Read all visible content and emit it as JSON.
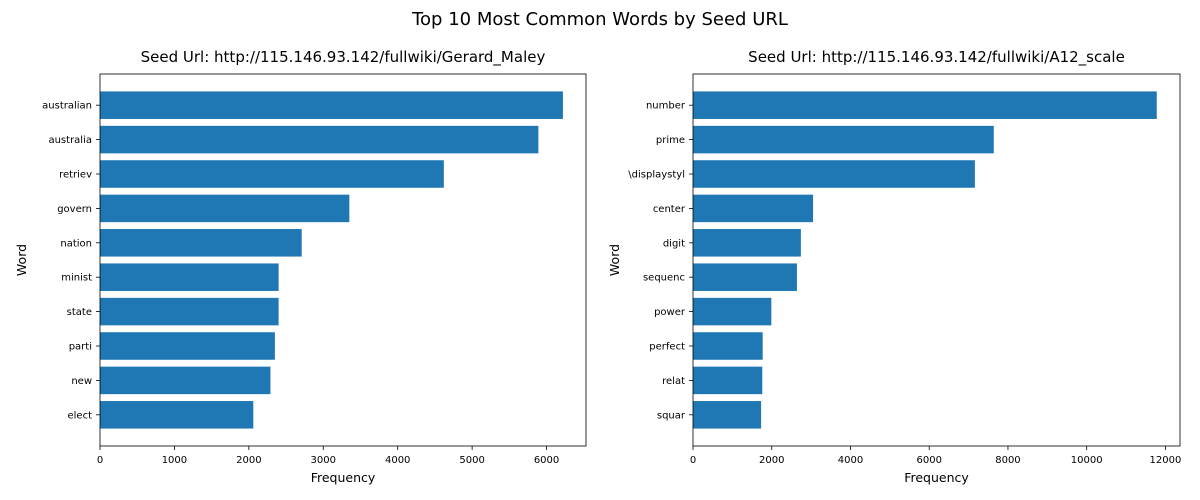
{
  "figure": {
    "suptitle": "Top 10 Most Common Words by Seed URL"
  },
  "chart_data": [
    {
      "type": "bar",
      "orientation": "horizontal",
      "title": "Seed Url: http://115.146.93.142/fullwiki/Gerard_Maley",
      "xlabel": "Frequency",
      "ylabel": "Word",
      "categories": [
        "australian",
        "australia",
        "retriev",
        "govern",
        "nation",
        "minist",
        "state",
        "parti",
        "new",
        "elect"
      ],
      "values": [
        6220,
        5890,
        4620,
        3350,
        2710,
        2400,
        2400,
        2350,
        2290,
        2060
      ],
      "xlim": [
        0,
        6530
      ],
      "xticks": [
        0,
        1000,
        2000,
        3000,
        4000,
        5000,
        6000
      ],
      "grid": false,
      "color": "#1f77b4"
    },
    {
      "type": "bar",
      "orientation": "horizontal",
      "title": "Seed Url: http://115.146.93.142/fullwiki/A12_scale",
      "xlabel": "Frequency",
      "ylabel": "Word",
      "categories": [
        "number",
        "prime",
        "\\displaystyl",
        "center",
        "digit",
        "sequenc",
        "power",
        "perfect",
        "relat",
        "squar"
      ],
      "values": [
        11780,
        7640,
        7160,
        3050,
        2740,
        2640,
        1990,
        1770,
        1760,
        1730
      ],
      "xlim": [
        0,
        12370
      ],
      "xticks": [
        0,
        2000,
        4000,
        6000,
        8000,
        10000,
        12000
      ],
      "grid": false,
      "color": "#1f77b4"
    }
  ]
}
